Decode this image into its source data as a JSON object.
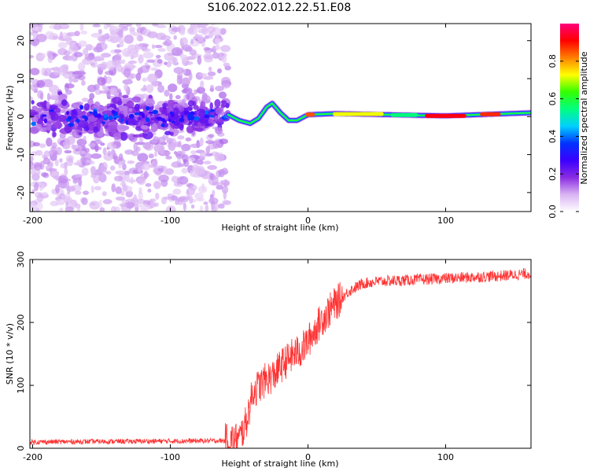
{
  "title": "S106.2022.012.22.51.E08",
  "chart_data": [
    {
      "type": "heatmap",
      "xlabel": "Height of straight line (km)",
      "ylabel": "Frequency (Hz)",
      "xlim": [
        -202,
        162
      ],
      "ylim": [
        -25,
        24.5
      ],
      "xticks": [
        -200,
        -100,
        0,
        100
      ],
      "yticks": [
        -20,
        -10,
        0,
        10,
        20
      ],
      "colorbar": {
        "label": "Normalized spectral amplitude",
        "range": [
          0,
          1
        ],
        "ticks": [
          0.0,
          0.2,
          0.4,
          0.6,
          0.8
        ],
        "colormap": [
          "#ffffff",
          "#d9b3f3",
          "#8a2be2",
          "#3b00ff",
          "#0033ff",
          "#00d0ff",
          "#00ff80",
          "#33ff00",
          "#ffff00",
          "#ff8000",
          "#ff0000",
          "#ff007a"
        ]
      },
      "signal_track": {
        "description_points_x": [
          -58,
          -50,
          -42,
          -36,
          -30,
          -26,
          -20,
          -14,
          -8,
          0,
          20,
          60,
          100,
          130,
          162
        ],
        "description_points_y": [
          0.5,
          -1.0,
          -1.8,
          -0.5,
          2.5,
          3.5,
          1.0,
          -1.0,
          -1.0,
          0.5,
          0.8,
          0.5,
          0.2,
          0.6,
          1.0
        ]
      }
    },
    {
      "type": "line",
      "xlabel": "Height of straight line (km)",
      "ylabel": "SNR (10 * v/v)",
      "xlim": [
        -202,
        162
      ],
      "ylim": [
        0,
        300
      ],
      "xticks": [
        -200,
        -100,
        0,
        100
      ],
      "yticks": [
        0,
        100,
        200,
        300
      ],
      "color": "#ff3333",
      "trend": {
        "x": [
          -202,
          -60,
          -50,
          -45,
          -40,
          -35,
          -30,
          -25,
          -20,
          -15,
          -10,
          -5,
          0,
          10,
          20,
          30,
          40,
          50,
          60,
          80,
          100,
          120,
          140,
          162
        ],
        "y": [
          10,
          12,
          14,
          40,
          90,
          100,
          110,
          115,
          130,
          140,
          150,
          155,
          170,
          205,
          230,
          250,
          262,
          265,
          266,
          268,
          270,
          272,
          274,
          278
        ]
      }
    }
  ]
}
